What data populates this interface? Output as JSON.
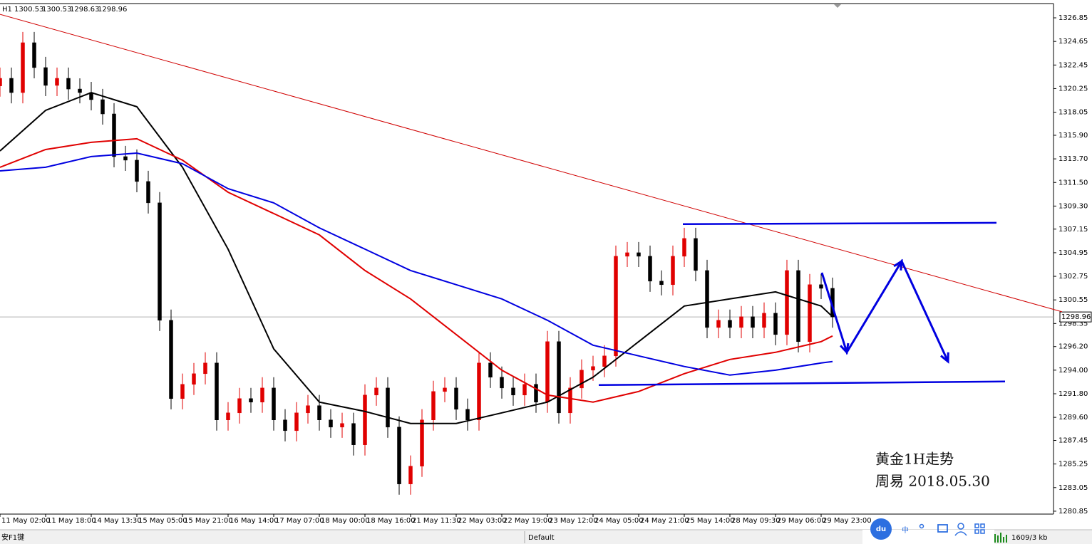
{
  "chart_data": {
    "type": "candlestick",
    "timeframe": "H1",
    "ohlc_header": [
      1300.53,
      1300.53,
      1298.63,
      1298.96
    ],
    "last_price": 1298.96,
    "ylim": [
      1280.58,
      1328.18
    ],
    "yticks": [
      1326.85,
      1324.65,
      1322.45,
      1320.25,
      1318.05,
      {
        "value": 1315.9,
        "label": "1315.90"
      },
      {
        "value": 1313.7,
        "label": "1313.70"
      },
      {
        "value": 1311.5,
        "label": "1311.50"
      },
      {
        "value": 1309.3,
        "label": "1309.30"
      },
      1307.15,
      1304.95,
      1302.75,
      1300.55,
      1298.35,
      {
        "value": 1296.2,
        "label": "1296.20"
      },
      {
        "value": 1294,
        "label": "1294.00"
      },
      {
        "value": 1291.8,
        "label": "1291.80"
      },
      {
        "value": 1289.6,
        "label": "1289.60"
      },
      1287.45,
      1285.25,
      1283.05,
      1280.85
    ],
    "xlim": [
      0,
      369.5
    ],
    "xticks": [
      {
        "value": 0,
        "label": "11 May 02:00"
      },
      {
        "value": 16,
        "label": "11 May 18:00"
      },
      {
        "value": 32,
        "label": "14 May 13:30"
      },
      {
        "value": 48,
        "label": "15 May 05:00"
      },
      {
        "value": 64,
        "label": "15 May 21:00"
      },
      {
        "value": 80,
        "label": "16 May 14:00"
      },
      {
        "value": 96,
        "label": "17 May 07:00"
      },
      {
        "value": 112,
        "label": "18 May 00:00"
      },
      {
        "value": 128,
        "label": "18 May 16:00"
      },
      {
        "value": 144,
        "label": "21 May 11:30"
      },
      {
        "value": 160,
        "label": "22 May 03:00"
      },
      {
        "value": 176,
        "label": "22 May 19:00"
      },
      {
        "value": 192,
        "label": "23 May 12:00"
      },
      {
        "value": 208,
        "label": "24 May 05:00"
      },
      {
        "value": 224,
        "label": "24 May 21:00"
      },
      {
        "value": 240,
        "label": "25 May 14:00"
      },
      {
        "value": 256,
        "label": "28 May 09:30"
      },
      {
        "value": 272,
        "label": "29 May 06:00"
      },
      {
        "value": 288,
        "label": "29 May 23:00"
      }
    ],
    "up_color": "#e00000",
    "down_color": "#000000",
    "x": [
      0,
      4,
      8,
      12,
      16,
      20,
      24,
      28,
      32,
      36,
      40,
      44,
      48,
      52,
      56,
      60,
      64,
      68,
      72,
      76,
      80,
      84,
      88,
      92,
      96,
      100,
      104,
      108,
      112,
      116,
      120,
      124,
      128,
      132,
      136,
      140,
      144,
      148,
      152,
      156,
      160,
      164,
      168,
      172,
      176,
      180,
      184,
      188,
      192,
      196,
      200,
      204,
      208,
      212,
      216,
      220,
      224,
      228,
      232,
      236,
      240,
      244,
      248,
      252,
      256,
      260,
      264,
      268,
      272,
      276,
      280,
      284,
      288,
      292
    ],
    "open": [
      1320.5,
      1321.21,
      1319.88,
      1324.53,
      1322.21,
      1320.55,
      1321.21,
      1320.21,
      1319.88,
      1319.22,
      1317.89,
      1313.91,
      1313.58,
      1311.59,
      1309.6,
      1298.65,
      1291.35,
      1292.68,
      1293.67,
      1294.67,
      1289.36,
      1290.02,
      1291.35,
      1291.02,
      1292.34,
      1289.36,
      1288.36,
      1290.02,
      1290.69,
      1289.36,
      1288.69,
      1289.03,
      1287.04,
      1291.68,
      1292.34,
      1288.69,
      1283.39,
      1285.05,
      1289.36,
      1292.01,
      1292.34,
      1290.35,
      1289.36,
      1294.67,
      1293.34,
      1292.34,
      1291.68,
      1292.68,
      1291.02,
      1296.66,
      1290.02,
      1292.34,
      1294,
      1294.34,
      1295.33,
      1304.62,
      1304.95,
      1304.62,
      1302.3,
      1301.97,
      1304.62,
      1306.28,
      1303.29,
      1297.98,
      1298.65,
      1297.98,
      1298.98,
      1297.98,
      1299.31,
      1297.32,
      1303.29,
      1296.66,
      1301.97,
      1301.63
    ],
    "high": [
      1322.21,
      1322.21,
      1325.53,
      1325.53,
      1323.21,
      1322.21,
      1322.21,
      1321.21,
      1320.88,
      1320.22,
      1318.89,
      1314.91,
      1314.58,
      1312.59,
      1310.6,
      1299.65,
      1293.68,
      1294.67,
      1295.67,
      1295.67,
      1291.02,
      1292.35,
      1292.35,
      1293.34,
      1293.34,
      1290.36,
      1291.02,
      1291.69,
      1291.69,
      1290.36,
      1290.03,
      1290.03,
      1292.68,
      1293.34,
      1293.34,
      1289.69,
      1286.05,
      1290.36,
      1293.01,
      1293.34,
      1293.34,
      1291.35,
      1295.67,
      1295.67,
      1294.34,
      1293.34,
      1293.68,
      1293.68,
      1297.66,
      1297.66,
      1293.34,
      1295,
      1295.34,
      1296.33,
      1305.62,
      1305.95,
      1305.95,
      1305.62,
      1303.3,
      1305.62,
      1307.28,
      1307.28,
      1304.29,
      1299.65,
      1299.65,
      1299.98,
      1299.98,
      1300.31,
      1300.31,
      1304.29,
      1304.29,
      1302.97,
      1302.97,
      1302.63
    ],
    "low": [
      1319.5,
      1318.88,
      1318.88,
      1321.21,
      1319.55,
      1319.55,
      1319.21,
      1318.88,
      1318.22,
      1316.89,
      1312.91,
      1312.58,
      1310.59,
      1308.6,
      1297.65,
      1290.35,
      1290.35,
      1291.68,
      1292.67,
      1288.36,
      1288.36,
      1289.02,
      1290.02,
      1290.02,
      1288.36,
      1287.36,
      1287.36,
      1289.02,
      1288.36,
      1287.69,
      1287.69,
      1286.04,
      1286.04,
      1290.68,
      1287.69,
      1282.39,
      1282.39,
      1284.05,
      1288.36,
      1291.01,
      1289.35,
      1288.36,
      1288.36,
      1292.34,
      1291.34,
      1290.68,
      1290.68,
      1290.02,
      1290.02,
      1289.02,
      1289.02,
      1291.34,
      1293,
      1293.34,
      1294.33,
      1303.62,
      1303.62,
      1301.3,
      1300.97,
      1300.97,
      1303.62,
      1302.29,
      1296.98,
      1296.98,
      1296.98,
      1296.98,
      1296.98,
      1296.98,
      1296.32,
      1296.32,
      1295.66,
      1295.66,
      1300.63,
      1297.96
    ],
    "close": [
      1321.21,
      1319.88,
      1324.53,
      1322.21,
      1320.55,
      1321.21,
      1320.21,
      1319.88,
      1319.22,
      1317.89,
      1313.91,
      1313.58,
      1311.59,
      1309.6,
      1298.65,
      1291.35,
      1292.68,
      1293.67,
      1294.67,
      1289.36,
      1290.02,
      1291.35,
      1291.02,
      1292.34,
      1289.36,
      1288.36,
      1290.02,
      1290.69,
      1289.36,
      1288.69,
      1289.03,
      1287.04,
      1291.68,
      1292.34,
      1288.69,
      1283.39,
      1285.05,
      1289.36,
      1292.01,
      1292.34,
      1290.35,
      1289.36,
      1294.67,
      1293.34,
      1292.34,
      1291.68,
      1292.68,
      1291.02,
      1296.66,
      1290.02,
      1292.34,
      1294,
      1294.34,
      1295.33,
      1304.62,
      1304.95,
      1304.62,
      1302.3,
      1301.97,
      1304.62,
      1306.28,
      1303.29,
      1297.98,
      1298.65,
      1297.98,
      1298.98,
      1297.98,
      1299.31,
      1297.32,
      1303.29,
      1296.66,
      1301.97,
      1301.63,
      1298.96
    ],
    "ma_x": [
      0,
      16,
      32,
      48,
      64,
      80,
      96,
      112,
      128,
      144,
      160,
      176,
      192,
      208,
      224,
      240,
      256,
      272,
      288,
      292
    ],
    "moving_averages": [
      {
        "color": "#000000",
        "values": [
          1314.44,
          1318.22,
          1319.88,
          1318.56,
          1312.92,
          1305.28,
          1295.99,
          1291.02,
          1290.15,
          1289.03,
          1289.03,
          1290.02,
          1291.02,
          1293.34,
          1296.66,
          1299.98,
          1300.64,
          1301.3,
          1299.98,
          1298.98
        ]
      },
      {
        "color": "#e00000",
        "values": [
          1312.92,
          1314.57,
          1315.24,
          1315.57,
          1313.58,
          1310.59,
          1308.6,
          1306.61,
          1303.29,
          1300.64,
          1297.32,
          1294,
          1291.68,
          1291.02,
          1292.01,
          1293.67,
          1295,
          1295.66,
          1296.66,
          1297.19
        ]
      },
      {
        "color": "#0000e0",
        "values": [
          1312.58,
          1312.92,
          1313.91,
          1314.24,
          1313.25,
          1310.92,
          1309.6,
          1307.27,
          1305.28,
          1303.29,
          1301.97,
          1300.64,
          1298.65,
          1296.33,
          1295.33,
          1294.34,
          1293.54,
          1294,
          1294.67,
          1294.8
        ]
      }
    ],
    "drawings": [
      {
        "color": "#d00000",
        "x": [
          0,
          372.5
        ],
        "values": [
          1327.18,
          1299.44
        ]
      },
      {
        "color": "#0000e0",
        "x": [
          239.5,
          349.5
        ],
        "values": [
          1307.61,
          1307.74
        ]
      },
      {
        "color": "#0000e0",
        "x": [
          210,
          352.5
        ],
        "values": [
          1292.61,
          1292.94
        ]
      },
      {
        "color": "#0000e0",
        "arrowheads": true,
        "x": [
          288.25,
          297,
          316.25,
          332.5
        ],
        "values": [
          1303.09,
          1295.66,
          1304.16,
          1294.8
        ]
      }
    ],
    "annotations": [
      "黄金1H走势",
      "周易  2018.05.30"
    ]
  },
  "status_bar": {
    "help": "安F1键",
    "profile": "Default",
    "ime_logo": "du",
    "ime_mode": "中",
    "traffic": "1609/3 kb"
  }
}
